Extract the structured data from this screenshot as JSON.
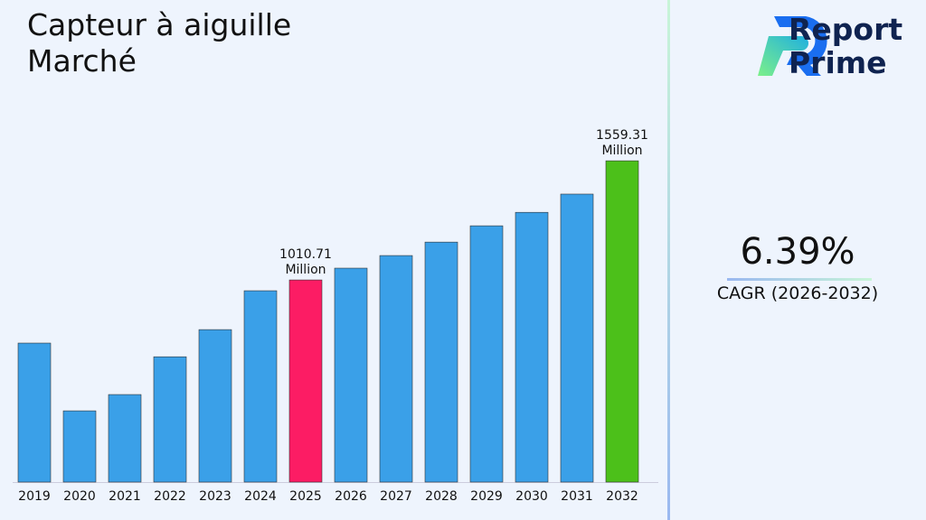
{
  "title": "Capteur à aiguille Marché",
  "brand": {
    "line1": "Report",
    "line2": "Prime"
  },
  "cagr": {
    "value": "6.39%",
    "label": "CAGR (2026-2032)"
  },
  "colors": {
    "default": "#3aa0e8",
    "highlight_2025": "#fc1c64",
    "highlight_2032": "#4cc01a"
  },
  "chart_data": {
    "type": "bar",
    "title": "Capteur à aiguille Marché",
    "xlabel": "",
    "ylabel": "",
    "categories": [
      "2019",
      "2020",
      "2021",
      "2022",
      "2023",
      "2024",
      "2025",
      "2026",
      "2027",
      "2028",
      "2029",
      "2030",
      "2031",
      "2032"
    ],
    "values": [
      720,
      408,
      483,
      657,
      782,
      961,
      1010.71,
      1065,
      1123,
      1185,
      1260,
      1322,
      1406,
      1559.31
    ],
    "ylim": [
      80,
      1884
    ],
    "grid": false,
    "annotations": [
      {
        "category": "2025",
        "line1": "1010.71",
        "line2": "Million"
      },
      {
        "category": "2032",
        "line1": "1559.31",
        "line2": "Million"
      }
    ]
  }
}
